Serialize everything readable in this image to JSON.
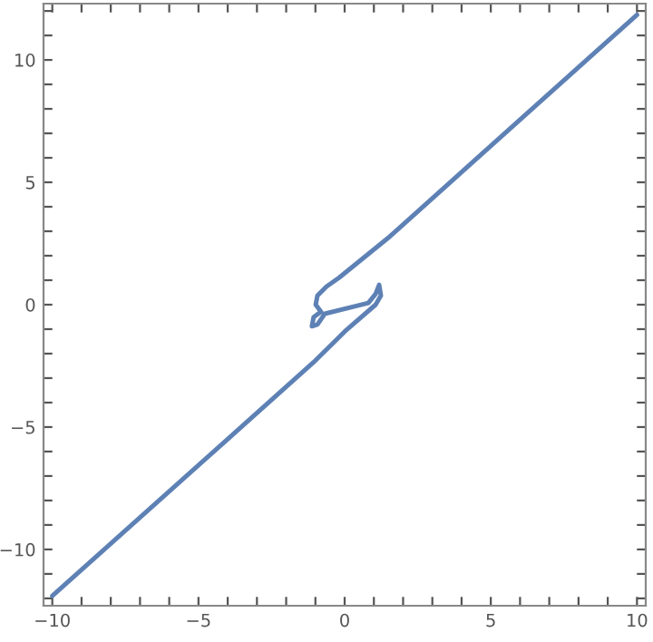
{
  "chart_data": {
    "type": "line",
    "xlim": [
      -10.3,
      10.3
    ],
    "ylim": [
      -12.3,
      12.3
    ],
    "xticks": [
      -10,
      {
        "value": -9,
        "label": null
      },
      {
        "value": -8,
        "label": null
      },
      {
        "value": -7,
        "label": null
      },
      {
        "value": -6,
        "label": null
      },
      -5,
      {
        "value": -4,
        "label": null
      },
      {
        "value": -3,
        "label": null
      },
      {
        "value": -2,
        "label": null
      },
      {
        "value": -1,
        "label": null
      },
      0,
      {
        "value": 1,
        "label": null
      },
      {
        "value": 2,
        "label": null
      },
      {
        "value": 3,
        "label": null
      },
      {
        "value": 4,
        "label": null
      },
      5,
      {
        "value": 6,
        "label": null
      },
      {
        "value": 7,
        "label": null
      },
      {
        "value": 8,
        "label": null
      },
      {
        "value": 9,
        "label": null
      },
      10
    ],
    "yticks": [
      {
        "value": -12,
        "label": null
      },
      {
        "value": -11,
        "label": null
      },
      -10,
      {
        "value": -9,
        "label": null
      },
      {
        "value": -8,
        "label": null
      },
      {
        "value": -7,
        "label": null
      },
      {
        "value": -6,
        "label": null
      },
      -5,
      {
        "value": -4,
        "label": null
      },
      {
        "value": -3,
        "label": null
      },
      {
        "value": -2,
        "label": null
      },
      {
        "value": -1,
        "label": null
      },
      0,
      {
        "value": 1,
        "label": null
      },
      {
        "value": 2,
        "label": null
      },
      {
        "value": 3,
        "label": null
      },
      {
        "value": 4,
        "label": null
      },
      5,
      {
        "value": 6,
        "label": null
      },
      {
        "value": 7,
        "label": null
      },
      {
        "value": 8,
        "label": null
      },
      {
        "value": 9,
        "label": null
      },
      10,
      {
        "value": 11,
        "label": null
      },
      {
        "value": 12,
        "label": null
      }
    ],
    "grid": false,
    "marker": "none",
    "line_style": "solid",
    "series": [
      {
        "color": "#5e81b5",
        "x": [
          10,
          1.55,
          -0.19,
          -0.62,
          -0.93,
          -0.99,
          -0.81,
          -1.06,
          -1.12,
          -0.93,
          -0.68,
          0.81,
          1.06,
          1.18,
          1.24,
          1.06,
          0,
          -1.06,
          -10
        ],
        "values": [
          11.84,
          2.79,
          1.1,
          0.74,
          0.37,
          0,
          -0.29,
          -0.51,
          -0.88,
          -0.81,
          -0.37,
          0.07,
          0.44,
          0.81,
          0.37,
          0,
          -1.1,
          -2.35,
          -11.9
        ]
      }
    ]
  }
}
